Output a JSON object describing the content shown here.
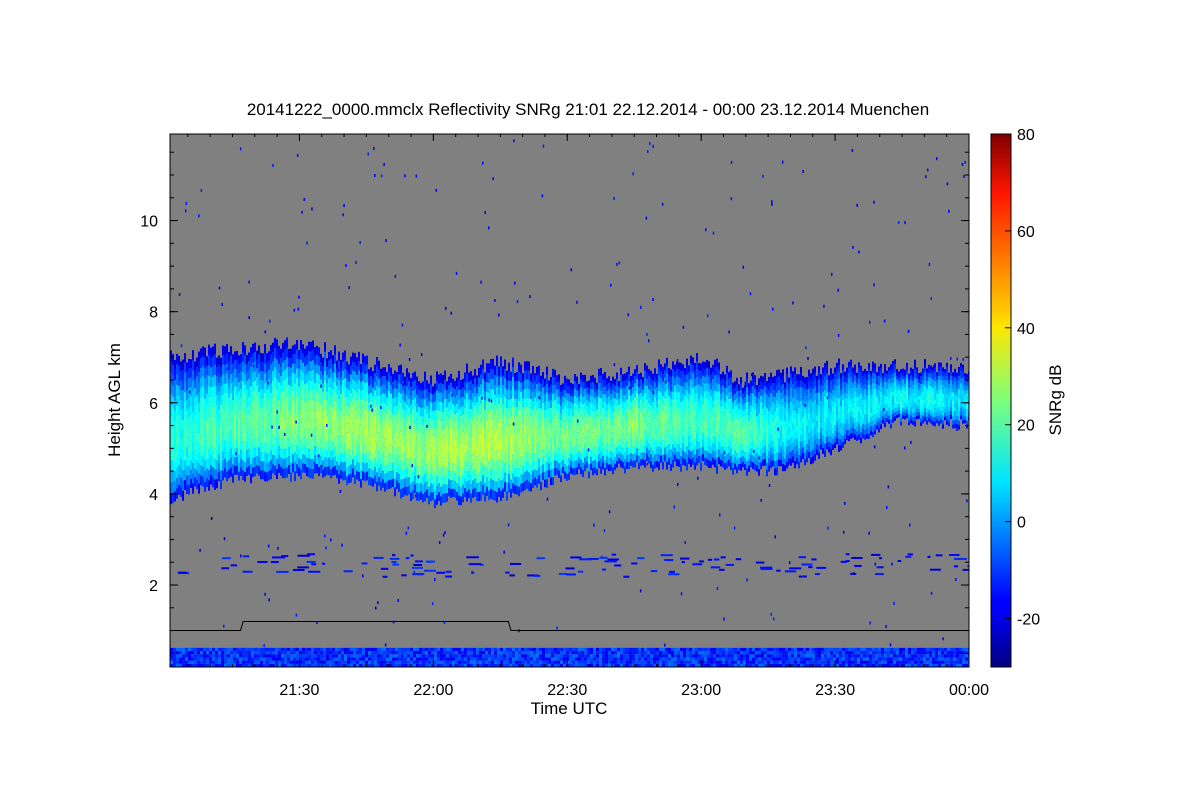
{
  "chart_data": {
    "type": "heatmap",
    "title": "20141222_0000.mmclx Reflectivity SNRg   21:01 22.12.2014 - 00:00 23.12.2014 Muenchen",
    "xlabel": "Time UTC",
    "ylabel": "Height AGL km",
    "colorbar_label": "SNRg dB",
    "xlim_hours": [
      21.0167,
      24.0
    ],
    "ylim_km": [
      0.2,
      11.9
    ],
    "xticks": [
      {
        "value": 21.5,
        "label": "21:30"
      },
      {
        "value": 22.0,
        "label": "22:00"
      },
      {
        "value": 22.5,
        "label": "22:30"
      },
      {
        "value": 23.0,
        "label": "23:00"
      },
      {
        "value": 23.5,
        "label": "23:30"
      },
      {
        "value": 24.0,
        "label": "00:00"
      }
    ],
    "yticks": [
      {
        "value": 2,
        "label": "2"
      },
      {
        "value": 4,
        "label": "4"
      },
      {
        "value": 6,
        "label": "6"
      },
      {
        "value": 8,
        "label": "8"
      },
      {
        "value": 10,
        "label": "10"
      }
    ],
    "colorbar": {
      "range": [
        -30,
        80
      ],
      "ticks": [
        {
          "value": -20,
          "label": "-20"
        },
        {
          "value": 0,
          "label": "0"
        },
        {
          "value": 20,
          "label": "20"
        },
        {
          "value": 40,
          "label": "40"
        },
        {
          "value": 60,
          "label": "60"
        },
        {
          "value": 80,
          "label": "80"
        }
      ]
    },
    "background_color": "#808080",
    "cloud_layer": {
      "time_h": [
        21.02,
        21.25,
        21.5,
        21.75,
        22.0,
        22.25,
        22.5,
        22.75,
        23.0,
        23.15,
        23.3,
        23.5,
        23.75,
        24.0
      ],
      "base_km": [
        3.9,
        4.3,
        4.4,
        4.2,
        3.8,
        3.9,
        4.4,
        4.6,
        4.6,
        4.5,
        4.5,
        5.0,
        5.6,
        5.5
      ],
      "top_km": [
        7.0,
        7.2,
        7.3,
        6.9,
        6.5,
        6.9,
        6.5,
        6.7,
        7.0,
        6.5,
        6.6,
        6.8,
        6.8,
        6.8
      ],
      "peak_snr_db": [
        15,
        20,
        25,
        28,
        28,
        30,
        22,
        25,
        18,
        22,
        12,
        10,
        12,
        10
      ]
    },
    "ground_clutter_km": [
      0.2,
      0.6
    ],
    "aux_line": {
      "time_h": [
        21.02,
        21.28,
        21.29,
        22.28,
        22.29,
        24.0
      ],
      "height_km": [
        1.0,
        1.0,
        1.2,
        1.2,
        1.0,
        1.0
      ]
    }
  }
}
